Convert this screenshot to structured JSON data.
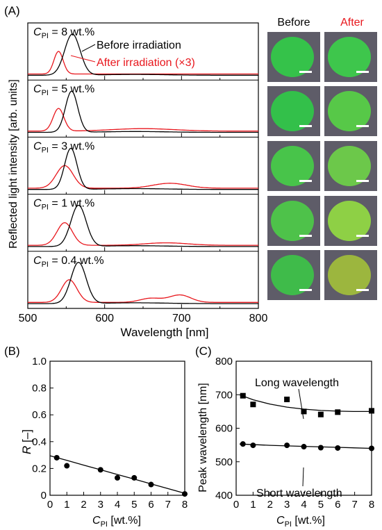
{
  "panel_labels": {
    "a": "(A)",
    "b": "(B)",
    "c": "(C)"
  },
  "photo_headers": {
    "before": "Before",
    "after": "After"
  },
  "colors": {
    "before": "#000000",
    "after": "#e8161c",
    "photo_bg": "#5e5c68",
    "photo_green": "#3fbf4a"
  },
  "chart_data": [
    {
      "type": "line",
      "xlabel": "Wavelength [nm]",
      "ylabel": "Reflected light intensity [arb. units]",
      "xlim": [
        500,
        800
      ],
      "x_ticks": [
        "500",
        "600",
        "700",
        "800"
      ],
      "legend": [
        {
          "name": "Before irradiation",
          "color": "#000000"
        },
        {
          "name": "After irradiation (×3)",
          "color": "#e8161c"
        }
      ],
      "panels": [
        {
          "label_sym": "C",
          "label_sub": "PI",
          "label_rest": " = 8 wt.%",
          "before_peak": 558,
          "before_width": 10,
          "after_peak": 540,
          "after_width": 6,
          "after_bumps": []
        },
        {
          "label_sym": "C",
          "label_sub": "PI",
          "label_rest": " = 5 wt.%",
          "before_peak": 557,
          "before_width": 8,
          "after_peak": 540,
          "after_width": 7,
          "after_bumps": [
            {
              "x": 650,
              "h": 0.06,
              "w": 40
            }
          ]
        },
        {
          "label_sym": "C",
          "label_sub": "PI",
          "label_rest": " = 3 wt.%",
          "before_peak": 556,
          "before_width": 8,
          "after_peak": 548,
          "after_width": 11,
          "after_bumps": [
            {
              "x": 685,
              "h": 0.12,
              "w": 22
            }
          ]
        },
        {
          "label_sym": "C",
          "label_sub": "PI",
          "label_rest": " = 1 wt.%",
          "before_peak": 566,
          "before_width": 10,
          "after_peak": 548,
          "after_width": 10,
          "after_bumps": [
            {
              "x": 680,
              "h": 0.06,
              "w": 28
            }
          ]
        },
        {
          "label_sym": "C",
          "label_sub": "PI",
          "label_rest": " = 0.4 wt.%",
          "before_peak": 566,
          "before_width": 10,
          "after_peak": 554,
          "after_width": 10,
          "after_bumps": [
            {
              "x": 660,
              "h": 0.1,
              "w": 14
            },
            {
              "x": 698,
              "h": 0.18,
              "w": 14
            }
          ]
        }
      ]
    },
    {
      "type": "scatter",
      "panel": "B",
      "xlabel_sym": "C",
      "xlabel_sub": "PI",
      "xlabel_rest": " [wt.%]",
      "ylabel_sym": "R",
      "ylabel_rest": " [–]",
      "xlim": [
        0,
        8
      ],
      "ylim": [
        0,
        1
      ],
      "x_ticks": [
        "0",
        "1",
        "2",
        "3",
        "4",
        "5",
        "6",
        "7",
        "8"
      ],
      "y_ticks": [
        "0",
        "0.2",
        "0.4",
        "0.6",
        "0.8",
        "1.0"
      ],
      "points": [
        [
          0.4,
          0.28
        ],
        [
          1,
          0.22
        ],
        [
          3,
          0.19
        ],
        [
          4,
          0.13
        ],
        [
          5,
          0.13
        ],
        [
          6,
          0.08
        ],
        [
          8,
          0.01
        ]
      ],
      "fit": [
        [
          0,
          0.295
        ],
        [
          1,
          0.26
        ],
        [
          2,
          0.225
        ],
        [
          3,
          0.19
        ],
        [
          4,
          0.155
        ],
        [
          5,
          0.12
        ],
        [
          6,
          0.085
        ],
        [
          7,
          0.05
        ],
        [
          8,
          0.015
        ]
      ]
    },
    {
      "type": "scatter",
      "panel": "C",
      "xlabel_sym": "C",
      "xlabel_sub": "PI",
      "xlabel_rest": " [wt.%]",
      "ylabel": "Peak wavelength [nm]",
      "xlim": [
        0,
        8
      ],
      "ylim": [
        400,
        800
      ],
      "x_ticks": [
        "0",
        "1",
        "2",
        "3",
        "4",
        "5",
        "6",
        "7",
        "8"
      ],
      "y_ticks": [
        "400",
        "500",
        "600",
        "700",
        "800"
      ],
      "series": [
        {
          "name": "Long wavelength",
          "marker": "square",
          "points": [
            [
              0.4,
              697
            ],
            [
              1,
              671
            ],
            [
              3,
              686
            ],
            [
              4,
              650
            ],
            [
              5,
              641
            ],
            [
              6,
              648
            ],
            [
              8,
              652
            ]
          ],
          "fit": [
            [
              0.2,
              700
            ],
            [
              1,
              685
            ],
            [
              2,
              672
            ],
            [
              3,
              663
            ],
            [
              4,
              657
            ],
            [
              5,
              653
            ],
            [
              6,
              651
            ],
            [
              7,
              650
            ],
            [
              8,
              650
            ]
          ]
        },
        {
          "name": "Short wavelength",
          "marker": "circle",
          "points": [
            [
              0.4,
              553
            ],
            [
              1,
              549
            ],
            [
              3,
              549
            ],
            [
              4,
              545
            ],
            [
              5,
              542
            ],
            [
              6,
              541
            ],
            [
              8,
              540
            ]
          ],
          "fit": [
            [
              0.2,
              553
            ],
            [
              2,
              549
            ],
            [
              4,
              546
            ],
            [
              6,
              543
            ],
            [
              8,
              540
            ]
          ]
        }
      ]
    }
  ]
}
